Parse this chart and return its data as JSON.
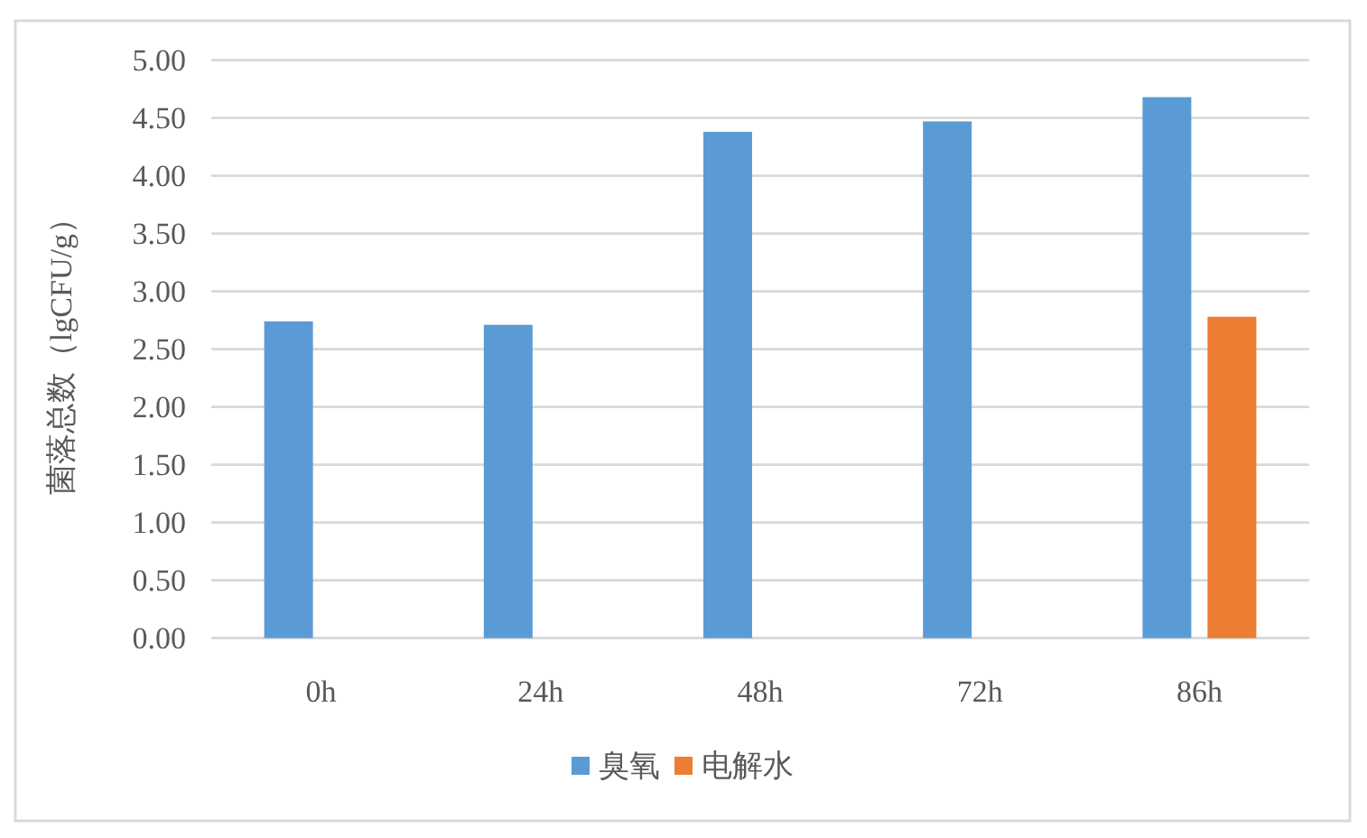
{
  "chart_data": {
    "type": "bar",
    "ylabel": "菌落总数（lgCFU/g）",
    "categories": [
      "0h",
      "24h",
      "48h",
      "72h",
      "86h"
    ],
    "series": [
      {
        "name": "臭氧",
        "color": "#5b9bd5",
        "values": [
          2.74,
          2.71,
          4.38,
          4.47,
          4.68
        ]
      },
      {
        "name": "电解水",
        "color": "#ed7d31",
        "values": [
          null,
          null,
          null,
          null,
          2.78
        ]
      }
    ],
    "ylim": [
      0,
      5
    ],
    "yticks": [
      {
        "value": 0,
        "label": "0.00"
      },
      {
        "value": 0.5,
        "label": "0.50"
      },
      {
        "value": 1,
        "label": "1.00"
      },
      {
        "value": 1.5,
        "label": "1.50"
      },
      {
        "value": 2,
        "label": "2.00"
      },
      {
        "value": 2.5,
        "label": "2.50"
      },
      {
        "value": 3,
        "label": "3.00"
      },
      {
        "value": 3.5,
        "label": "3.50"
      },
      {
        "value": 4,
        "label": "4.00"
      },
      {
        "value": 4.5,
        "label": "4.50"
      },
      {
        "value": 5,
        "label": "5.00"
      }
    ],
    "grid": "y",
    "legend": "bottom"
  }
}
